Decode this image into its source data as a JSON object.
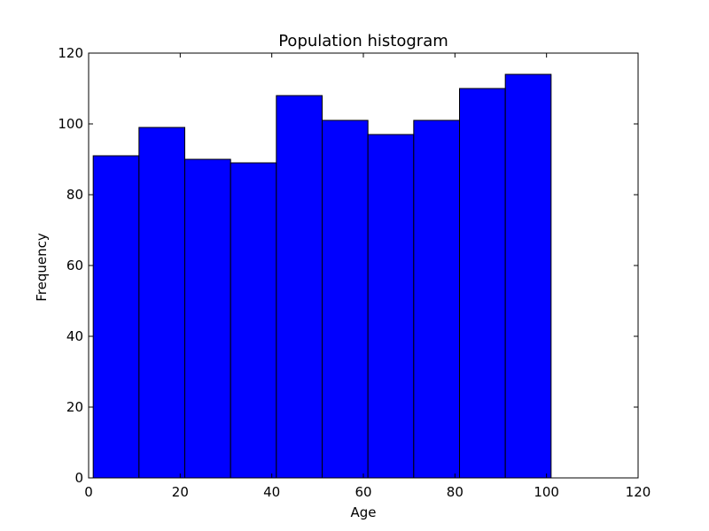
{
  "chart_data": {
    "type": "bar",
    "title": "Population histogram",
    "xlabel": "Age",
    "ylabel": "Frequency",
    "bins": [
      {
        "start": 1,
        "end": 11,
        "value": 91
      },
      {
        "start": 11,
        "end": 21,
        "value": 99
      },
      {
        "start": 21,
        "end": 31,
        "value": 90
      },
      {
        "start": 31,
        "end": 41,
        "value": 89
      },
      {
        "start": 41,
        "end": 51,
        "value": 108
      },
      {
        "start": 51,
        "end": 61,
        "value": 101
      },
      {
        "start": 61,
        "end": 71,
        "value": 97
      },
      {
        "start": 71,
        "end": 81,
        "value": 101
      },
      {
        "start": 81,
        "end": 91,
        "value": 110
      },
      {
        "start": 91,
        "end": 101,
        "value": 114
      }
    ],
    "xlim": [
      0,
      120
    ],
    "ylim": [
      0,
      120
    ],
    "xticks": [
      "0",
      "20",
      "40",
      "60",
      "80",
      "100",
      "120"
    ],
    "yticks": [
      "0",
      "20",
      "40",
      "60",
      "80",
      "100",
      "120"
    ],
    "bar_color": "#0000ff",
    "edge_color": "#000000",
    "grid": false,
    "legend": "none"
  }
}
